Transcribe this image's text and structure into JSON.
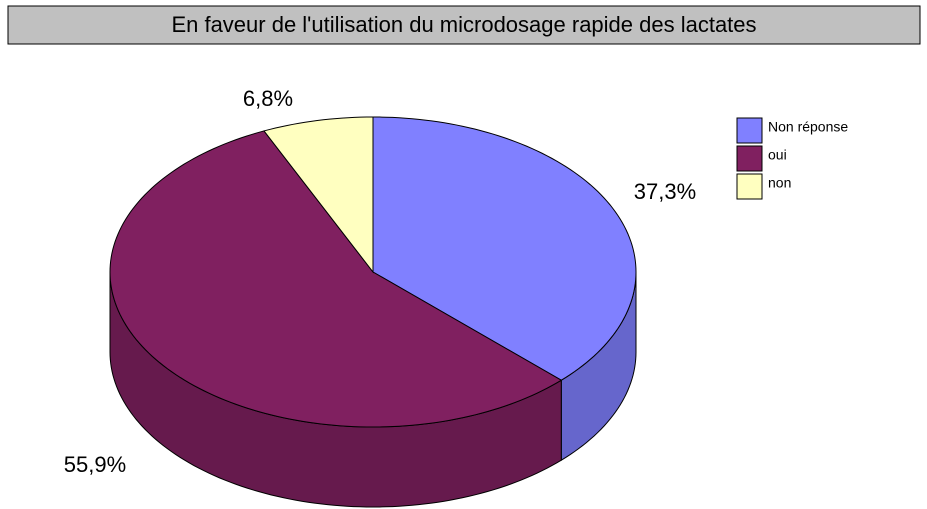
{
  "chart_data": {
    "type": "pie3d",
    "title": "En faveur de l'utilisation du microdosage rapide des lactates",
    "categories": [
      "Non réponse",
      "oui",
      "non"
    ],
    "values": [
      37.3,
      55.9,
      6.8
    ],
    "value_labels": [
      "37,3%",
      "55,9%",
      "6,8%"
    ],
    "colors": [
      "#8080ff",
      "#802060",
      "#ffffc0"
    ],
    "legend": "right"
  }
}
